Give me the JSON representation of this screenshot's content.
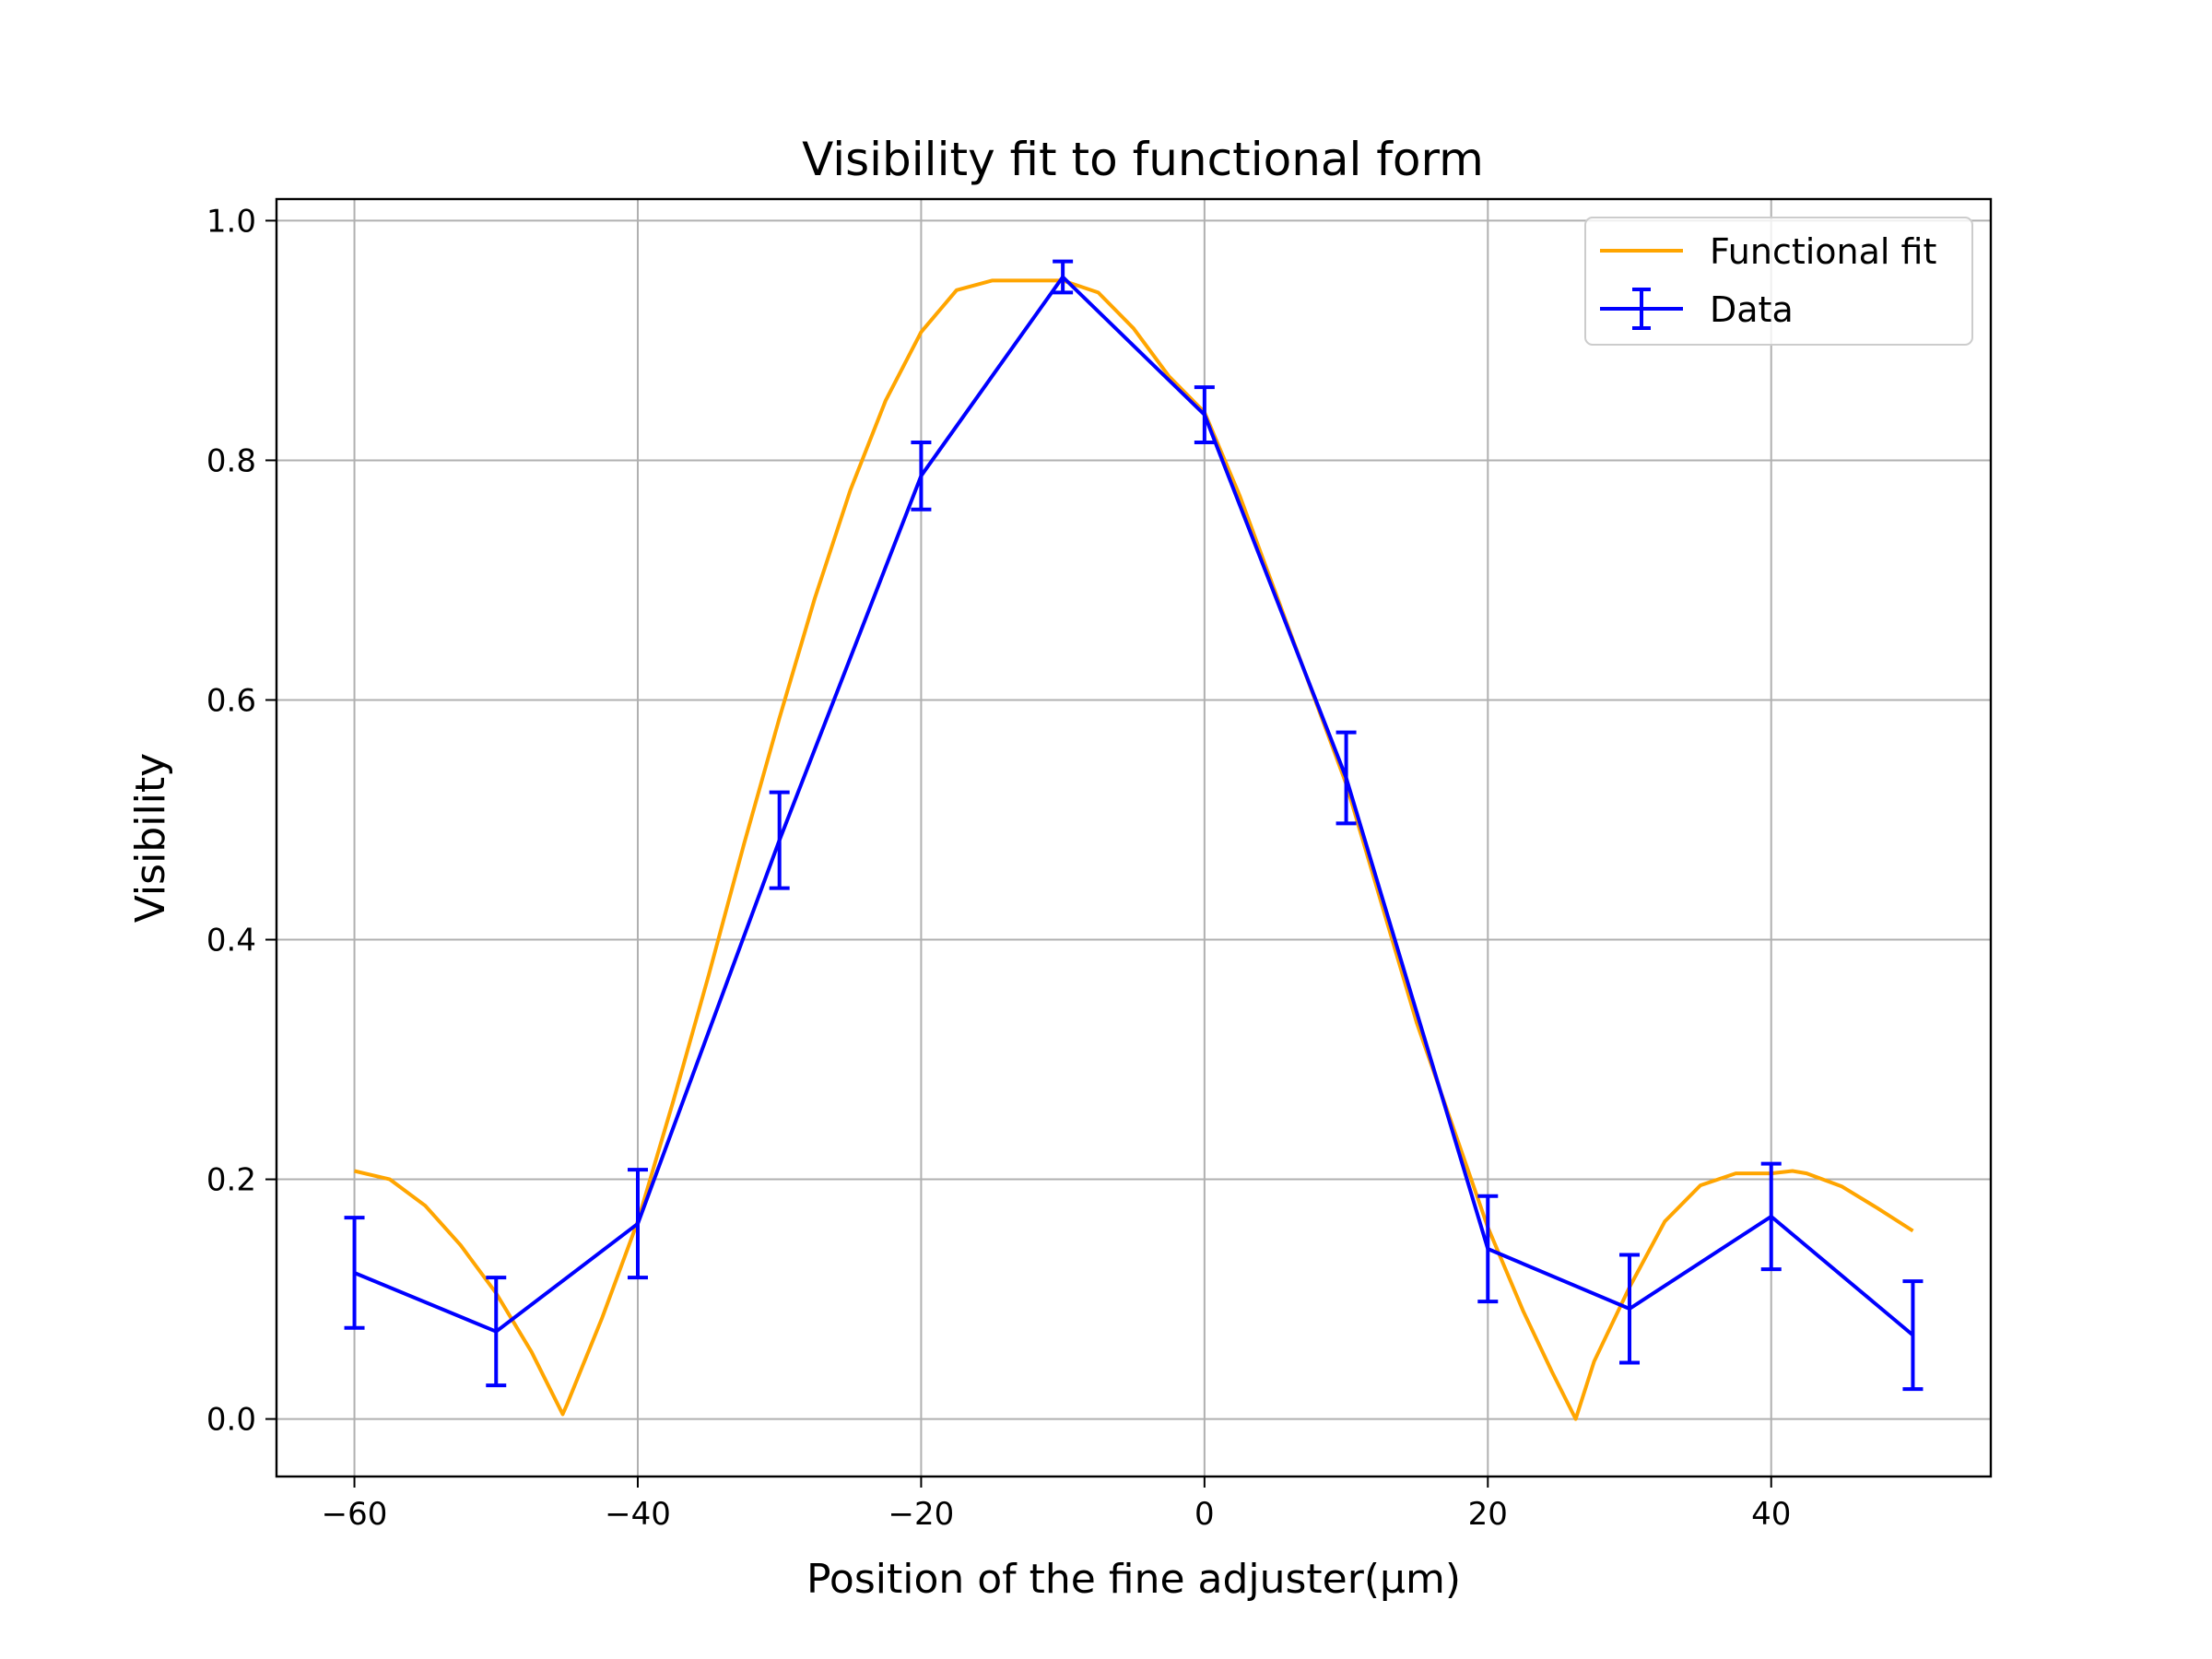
{
  "chart_data": {
    "type": "line",
    "title": "Visibility fit to functional form",
    "xlabel": "Position of the fine adjuster(μm)",
    "ylabel": "Visibility",
    "xlim": [
      -65.5,
      55.5
    ],
    "ylim": [
      -0.048,
      1.018
    ],
    "xticks": [
      -60,
      -40,
      -20,
      0,
      20,
      40
    ],
    "xtick_labels": [
      "−60",
      "−40",
      "−20",
      "0",
      "20",
      "40"
    ],
    "yticks": [
      0.0,
      0.2,
      0.4,
      0.6,
      0.8,
      1.0
    ],
    "ytick_labels": [
      "0.0",
      "0.2",
      "0.4",
      "0.6",
      "0.8",
      "1.0"
    ],
    "grid": true,
    "legend_position": "top-right",
    "series": [
      {
        "name": "Functional fit",
        "kind": "line",
        "color": "#FFA500",
        "x": [
          -60,
          -57.5,
          -55,
          -52.5,
          -50,
          -47.5,
          -45.3,
          -45,
          -42.5,
          -40,
          -37.5,
          -35,
          -32.5,
          -30,
          -27.5,
          -25,
          -22.5,
          -20,
          -17.5,
          -15,
          -12.5,
          -10,
          -7.5,
          -5,
          -2.5,
          0,
          2.5,
          5,
          7.5,
          10,
          12.5,
          15,
          17.5,
          20,
          22.5,
          24.5,
          26.2,
          27.5,
          30,
          32.5,
          35,
          37.5,
          40,
          41.5,
          42.5,
          45,
          47.5,
          50
        ],
        "y": [
          0.207,
          0.2,
          0.178,
          0.145,
          0.105,
          0.056,
          0.004,
          0.012,
          0.085,
          0.165,
          0.265,
          0.37,
          0.48,
          0.585,
          0.685,
          0.775,
          0.85,
          0.907,
          0.942,
          0.95,
          0.95,
          0.95,
          0.94,
          0.91,
          0.87,
          0.84,
          0.77,
          0.69,
          0.61,
          0.53,
          0.43,
          0.33,
          0.245,
          0.16,
          0.09,
          0.04,
          0.0,
          0.048,
          0.11,
          0.165,
          0.195,
          0.205,
          0.205,
          0.207,
          0.205,
          0.194,
          0.176,
          0.157
        ]
      },
      {
        "name": "Data",
        "kind": "errorbar",
        "color": "#0000FF",
        "x": [
          -60,
          -50,
          -40,
          -30,
          -20,
          -10,
          0,
          10,
          20,
          30,
          40,
          50
        ],
        "y": [
          0.122,
          0.073,
          0.163,
          0.483,
          0.787,
          0.953,
          0.838,
          0.535,
          0.142,
          0.092,
          0.169,
          0.07
        ],
        "yerr": [
          0.046,
          0.045,
          0.045,
          0.04,
          0.028,
          0.013,
          0.023,
          0.038,
          0.044,
          0.045,
          0.044,
          0.045
        ]
      }
    ]
  }
}
